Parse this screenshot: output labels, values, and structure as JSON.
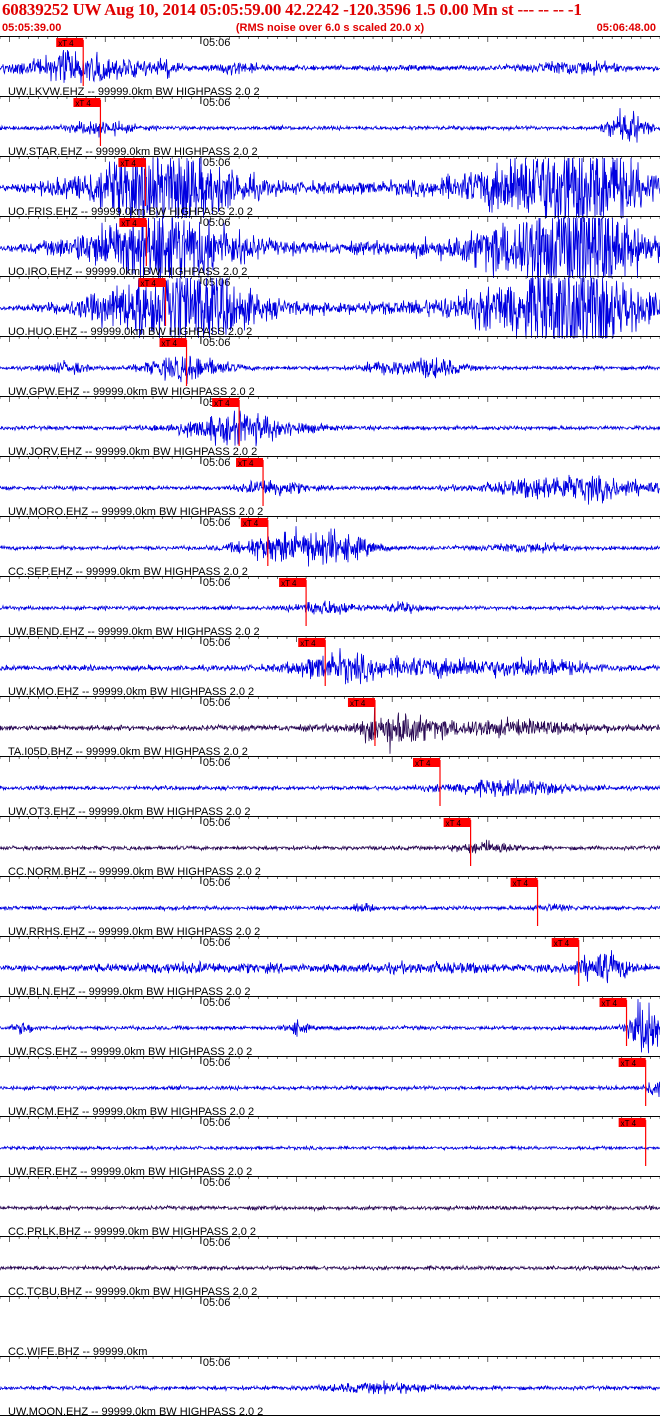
{
  "header": {
    "title": "60839252 UW Aug 10, 2014 05:05:59.00   42.2242 -120.3596  1.5 0.00 Mn st --- -- --   -1",
    "start_time": "05:05:39.00",
    "end_time": "05:06:48.00",
    "note": "(RMS noise over 6.0 s scaled 20.0 x)"
  },
  "chart_data": {
    "type": "line",
    "title": "60839252 UW Aug 10, 2014 05:05:59.00   42.2242 -120.3596  1.5 0.00 Mn st --- -- --   -1",
    "x_start_s": 0,
    "x_end_s": 69,
    "minute_tick_label": "05:06",
    "minute_tick_s": 21,
    "pick_label": "xT 4",
    "colors": {
      "trace": "#0000e0",
      "broadband": "#2a0a55",
      "pick": "#ff0000",
      "text": "#000000",
      "header": "#e00000"
    },
    "grid": false,
    "traces": [
      {
        "label": "UW.LKVW.EHZ -- 99999.0km BW  HIGHPASS  2.0  2",
        "pick_s": 8.7,
        "color": "#0000e0",
        "amp": 4,
        "events": [
          [
            8.7,
            6,
            22
          ],
          [
            17,
            1.5,
            8
          ],
          [
            25,
            2,
            8
          ],
          [
            60,
            4,
            9
          ]
        ]
      },
      {
        "label": "UW.STAR.EHZ -- 99999.0km BW  HIGHPASS  2.0  2",
        "pick_s": 10.5,
        "color": "#0000e0",
        "amp": 3,
        "events": [
          [
            10.5,
            3,
            10
          ],
          [
            65.5,
            2,
            24
          ]
        ]
      },
      {
        "label": "UO.FRIS.EHZ -- 99999.0km BW  HIGHPASS  2.0  2",
        "pick_s": 15.2,
        "color": "#0000e0",
        "amp": 4,
        "events": [
          [
            15.2,
            8,
            38
          ],
          [
            19,
            6,
            30
          ],
          [
            40,
            15,
            6
          ],
          [
            57,
            8,
            45
          ],
          [
            62,
            6,
            40
          ]
        ]
      },
      {
        "label": "UO.IRO.EHZ -- 99999.0km BW  HIGHPASS  2.0  2",
        "pick_s": 15.3,
        "color": "#0000e0",
        "amp": 4,
        "events": [
          [
            15.3,
            8,
            38
          ],
          [
            19,
            6,
            30
          ],
          [
            40,
            15,
            6
          ],
          [
            57,
            8,
            45
          ],
          [
            62,
            6,
            40
          ]
        ]
      },
      {
        "label": "UO.HUO.EHZ -- 99999.0km BW  HIGHPASS  2.0  2",
        "pick_s": 17.3,
        "color": "#0000e0",
        "amp": 4,
        "events": [
          [
            17.3,
            8,
            38
          ],
          [
            20,
            6,
            30
          ],
          [
            42,
            15,
            6
          ],
          [
            57,
            8,
            45
          ],
          [
            62,
            6,
            40
          ]
        ]
      },
      {
        "label": "UW.GPW.EHZ -- 99999.0km BW  HIGHPASS  2.0  2",
        "pick_s": 19.5,
        "color": "#0000e0",
        "amp": 3,
        "events": [
          [
            7,
            2,
            8
          ],
          [
            19.5,
            4,
            18
          ],
          [
            40,
            2,
            8
          ],
          [
            45,
            3,
            14
          ]
        ]
      },
      {
        "label": "UW.JORV.EHZ -- 99999.0km BW  HIGHPASS  2.0  2",
        "pick_s": 25.0,
        "color": "#0000e0",
        "amp": 3,
        "events": [
          [
            25,
            6,
            22
          ]
        ]
      },
      {
        "label": "UW.MORO.EHZ -- 99999.0km BW  HIGHPASS  2.0  2",
        "pick_s": 27.5,
        "color": "#0000e0",
        "amp": 3,
        "events": [
          [
            28.5,
            3,
            12
          ],
          [
            60,
            8,
            18
          ]
        ]
      },
      {
        "label": "CC.SEP.EHZ -- 99999.0km BW  HIGHPASS  2.0  2",
        "pick_s": 28.0,
        "color": "#0000e0",
        "amp": 3,
        "events": [
          [
            29,
            4,
            18
          ],
          [
            34.5,
            4,
            22
          ],
          [
            55,
            4,
            6
          ]
        ]
      },
      {
        "label": "UW.BEND.EHZ -- 99999.0km BW  HIGHPASS  2.0  2",
        "pick_s": 32.0,
        "color": "#0000e0",
        "amp": 3,
        "events": [
          [
            34,
            3,
            10
          ],
          [
            42,
            2,
            6
          ]
        ]
      },
      {
        "label": "UW.KMO.EHZ -- 99999.0km BW  HIGHPASS  2.0  2",
        "pick_s": 34.0,
        "color": "#0000e0",
        "amp": 4,
        "events": [
          [
            35,
            4,
            16
          ],
          [
            45,
            10,
            12
          ],
          [
            57,
            5,
            8
          ]
        ]
      },
      {
        "label": "TA.I05D.BHZ -- 99999.0km BW  HIGHPASS  2.0  2",
        "pick_s": 39.2,
        "color": "#2a0a55",
        "amp": 4,
        "events": [
          [
            41,
            3,
            22
          ],
          [
            50,
            12,
            10
          ]
        ]
      },
      {
        "label": "UW.OT3.EHZ -- 99999.0km BW  HIGHPASS  2.0  2",
        "pick_s": 46.0,
        "color": "#0000e0",
        "amp": 3,
        "events": [
          [
            53,
            7,
            10
          ]
        ]
      },
      {
        "label": "CC.NORM.BHZ -- 99999.0km BW  HIGHPASS  2.0  2",
        "pick_s": 49.2,
        "color": "#2a0a55",
        "amp": 3,
        "events": [
          [
            51,
            3,
            8
          ]
        ]
      },
      {
        "label": "UW.RRHS.EHZ -- 99999.0km BW  HIGHPASS  2.0  2",
        "pick_s": 56.2,
        "color": "#0000e0",
        "amp": 3,
        "events": [
          [
            38,
            1,
            6
          ],
          [
            58,
            2,
            4
          ]
        ]
      },
      {
        "label": "UW.BLN.EHZ -- 99999.0km BW  HIGHPASS  2.0  2",
        "pick_s": 60.5,
        "color": "#0000e0",
        "amp": 4,
        "events": [
          [
            20,
            10,
            5
          ],
          [
            45,
            10,
            5
          ],
          [
            63,
            3,
            20
          ]
        ]
      },
      {
        "label": "UW.RCS.EHZ -- 99999.0km BW  HIGHPASS  2.0  2",
        "pick_s": 65.5,
        "color": "#0000e0",
        "amp": 3,
        "events": [
          [
            2.5,
            1,
            8
          ],
          [
            31,
            1,
            10
          ],
          [
            67.5,
            1.5,
            45
          ]
        ]
      },
      {
        "label": "UW.RCM.EHZ -- 99999.0km BW  HIGHPASS  2.0  2",
        "pick_s": 67.5,
        "color": "#0000e0",
        "amp": 3,
        "events": [
          [
            68.5,
            1,
            14
          ]
        ]
      },
      {
        "label": "UW.RER.EHZ -- 99999.0km BW  HIGHPASS  2.0  2",
        "pick_s": 67.5,
        "color": "#0000e0",
        "amp": 2.5,
        "events": []
      },
      {
        "label": "CC.PRLK.BHZ -- 99999.0km BW  HIGHPASS  2.0  2",
        "pick_s": null,
        "color": "#2a0a55",
        "amp": 3,
        "events": []
      },
      {
        "label": "CC.TCBU.BHZ -- 99999.0km BW  HIGHPASS  2.0  2",
        "pick_s": null,
        "color": "#2a0a55",
        "amp": 3,
        "events": []
      },
      {
        "label": "CC.WIFE.BHZ -- 99999.0km",
        "pick_s": null,
        "color": "#0000e0",
        "amp": 0,
        "events": []
      },
      {
        "label": "UW.MOON.EHZ -- 99999.0km BW  HIGHPASS  2.0  2",
        "pick_s": null,
        "color": "#0000e0",
        "amp": 3,
        "events": [
          [
            40,
            6,
            6
          ]
        ]
      }
    ]
  }
}
